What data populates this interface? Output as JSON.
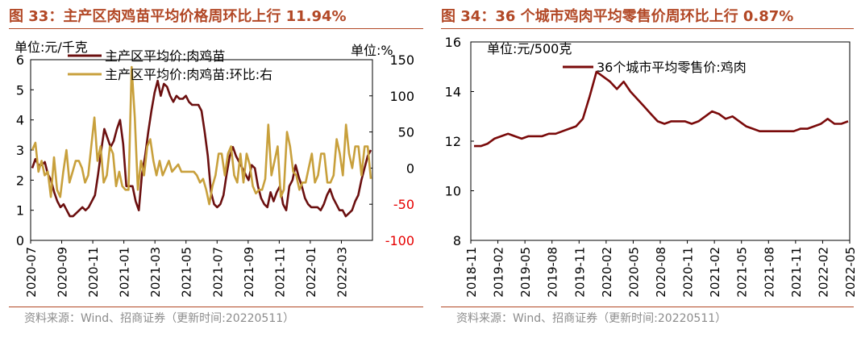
{
  "figures": [
    {
      "title": "图 33：主产区肉鸡苗平均价格周环比上行 11.94%",
      "source": "资料来源：Wind、招商证券（更新时间:20220511）"
    },
    {
      "title": "图 34：36 个城市鸡肉平均零售价周环比上行 0.87%",
      "source": "资料来源：Wind、招商证券（更新时间:20220511）"
    }
  ],
  "chart_data": [
    {
      "type": "line",
      "title": "图 33：主产区肉鸡苗平均价格周环比上行 11.94%",
      "left_unit": "单位:元/千克",
      "right_unit": "单位:%",
      "ylim_left": [
        0,
        6
      ],
      "ylim_right": [
        -100,
        150
      ],
      "y_ticks_left": [
        "0",
        "1",
        "2",
        "3",
        "4",
        "5",
        "6"
      ],
      "y_ticks_right": [
        "-100",
        "-50",
        "0",
        "50",
        "100",
        "150"
      ],
      "x_tick_labels": [
        "2020-07",
        "2020-09",
        "2020-11",
        "2021-01",
        "2021-03",
        "2021-05",
        "2021-07",
        "2021-09",
        "2021-11",
        "2022-01",
        "2022-03"
      ],
      "legend": [
        "主产区平均价:肉鸡苗",
        "主产区平均价:肉鸡苗:环比:右"
      ],
      "series": [
        {
          "name": "主产区平均价:肉鸡苗",
          "axis": "left",
          "color": "#6b0f0f",
          "values": [
            2.4,
            2.7,
            2.5,
            2.5,
            2.6,
            2.2,
            2.0,
            1.6,
            1.3,
            1.1,
            1.2,
            1.0,
            0.8,
            0.8,
            0.9,
            1.0,
            1.1,
            1.0,
            1.1,
            1.3,
            1.5,
            2.2,
            3.0,
            3.7,
            3.4,
            3.1,
            3.3,
            3.7,
            4.0,
            3.2,
            1.8,
            1.8,
            1.8,
            1.3,
            1.0,
            2.2,
            2.8,
            3.6,
            4.3,
            4.9,
            5.3,
            4.8,
            5.2,
            5.1,
            4.8,
            4.6,
            4.8,
            4.7,
            4.7,
            4.8,
            4.6,
            4.5,
            4.5,
            4.5,
            4.3,
            3.6,
            2.8,
            1.6,
            1.2,
            1.1,
            1.2,
            1.5,
            2.2,
            2.8,
            3.1,
            2.8,
            2.6,
            2.4,
            2.2,
            2.0,
            2.5,
            2.4,
            1.8,
            1.4,
            1.2,
            1.1,
            1.6,
            1.3,
            1.6,
            1.8,
            1.2,
            1.0,
            1.8,
            2.0,
            2.5,
            2.1,
            1.8,
            1.4,
            1.2,
            1.1,
            1.1,
            1.1,
            1.0,
            1.2,
            1.5,
            1.7,
            1.4,
            1.2,
            1.0,
            1.0,
            0.8,
            0.9,
            1.0,
            1.3,
            1.5,
            2.0,
            2.4,
            2.8,
            3.0
          ]
        },
        {
          "name": "主产区平均价:肉鸡苗:环比:右",
          "axis": "right",
          "color": "#c8a03c",
          "values": [
            25,
            35,
            -5,
            10,
            -10,
            -5,
            -40,
            15,
            -30,
            -40,
            -5,
            25,
            -20,
            -5,
            10,
            10,
            0,
            -20,
            -10,
            30,
            70,
            10,
            30,
            -20,
            -10,
            30,
            20,
            -25,
            -5,
            -25,
            -30,
            -30,
            140,
            70,
            -30,
            10,
            -10,
            30,
            40,
            10,
            -10,
            10,
            -10,
            0,
            10,
            -5,
            0,
            5,
            -5,
            -5,
            -5,
            -5,
            -5,
            -10,
            -20,
            -15,
            -30,
            -50,
            -25,
            -10,
            20,
            20,
            -10,
            20,
            30,
            -10,
            -20,
            20,
            -20,
            20,
            5,
            -25,
            -35,
            -30,
            -30,
            -15,
            60,
            -10,
            10,
            30,
            -40,
            -30,
            50,
            30,
            -5,
            -10,
            -30,
            -20,
            -20,
            0,
            20,
            -20,
            -10,
            20,
            20,
            -20,
            -20,
            -10,
            40,
            20,
            -10,
            60,
            20,
            0,
            30,
            30,
            -10,
            30,
            30,
            -15
          ]
        }
      ]
    },
    {
      "type": "line",
      "title": "图 34：36 个城市鸡肉平均零售价周环比上行 0.87%",
      "unit": "单位:元/500克",
      "ylim": [
        8,
        16
      ],
      "y_ticks": [
        "8",
        "10",
        "12",
        "14",
        "16"
      ],
      "x_tick_labels": [
        "2018-11",
        "2019-02",
        "2019-05",
        "2019-08",
        "2019-11",
        "2020-02",
        "2020-05",
        "2020-08",
        "2020-11",
        "2021-02",
        "2021-05",
        "2021-08",
        "2021-11",
        "2022-02",
        "2022-05"
      ],
      "legend": [
        "36个城市平均零售价:鸡肉"
      ],
      "series": [
        {
          "name": "36个城市平均零售价:鸡肉",
          "color": "#7a0a0a",
          "values": [
            11.8,
            11.8,
            11.9,
            12.1,
            12.2,
            12.3,
            12.2,
            12.1,
            12.2,
            12.2,
            12.2,
            12.3,
            12.3,
            12.4,
            12.5,
            12.6,
            12.9,
            13.8,
            14.8,
            14.6,
            14.4,
            14.1,
            14.4,
            14.0,
            13.7,
            13.4,
            13.1,
            12.8,
            12.7,
            12.8,
            12.8,
            12.8,
            12.7,
            12.8,
            13.0,
            13.2,
            13.1,
            12.9,
            13.0,
            12.8,
            12.6,
            12.5,
            12.4,
            12.4,
            12.4,
            12.4,
            12.4,
            12.4,
            12.5,
            12.5,
            12.6,
            12.7,
            12.9,
            12.7,
            12.7,
            12.8
          ]
        }
      ]
    }
  ]
}
